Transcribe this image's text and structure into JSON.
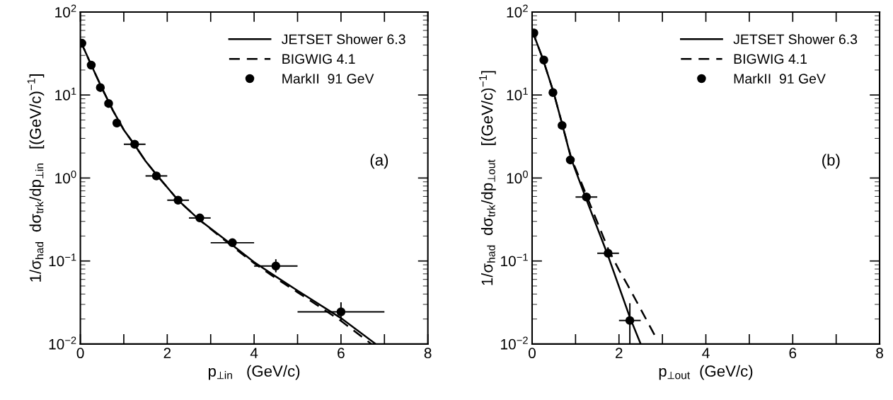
{
  "chart_data": [
    {
      "type": "line",
      "xlabel": "p$_{⊥in}$   (GeV/c)",
      "ylabel": "1/σ$_{had}$  dσ$_{trk}$/dp$_{⊥in}$   [(GeV/c)$^{−1}$]",
      "log": "y",
      "xlim": [
        0,
        8
      ],
      "ylim": [
        0.01,
        100
      ],
      "xticks": [
        0,
        {
          "value": 1,
          "label": null
        },
        2,
        {
          "value": 3,
          "label": null
        },
        4,
        {
          "value": 5,
          "label": null
        },
        6,
        {
          "value": 7,
          "label": null
        },
        8
      ],
      "yticks": [
        {
          "value": 0.01,
          "label": "10$^{−2}$"
        },
        {
          "value": 0.1,
          "label": "10$^{−1}$"
        },
        {
          "value": 1,
          "label": "10$^{0}$"
        },
        {
          "value": 10,
          "label": "10$^{1}$"
        },
        {
          "value": 100,
          "label": "10$^{2}$"
        }
      ],
      "legend": "top right",
      "grid": false,
      "annotations": [
        "(a)"
      ],
      "series": [
        {
          "name": "JETSET Shower 6.3",
          "line_style": "solid",
          "color": "#000000",
          "x": [
            0,
            0.25,
            0.5,
            0.75,
            1.0,
            1.25,
            1.5,
            1.75,
            2.25,
            2.75,
            3.5,
            4.0,
            4.5,
            5.0,
            6.0,
            6.8
          ],
          "values": [
            45,
            23,
            12,
            6.5,
            3.8,
            2.5,
            1.6,
            1.1,
            0.54,
            0.31,
            0.155,
            0.097,
            0.065,
            0.044,
            0.0205,
            0.01
          ]
        },
        {
          "name": "BIGWIG 4.1",
          "line_style": "dashed",
          "color": "#000000",
          "x": [
            0,
            0.25,
            0.5,
            0.75,
            1.0,
            1.25,
            1.5,
            1.75,
            2.25,
            2.75,
            3.5,
            4.0,
            4.5,
            5.0,
            6.0,
            6.7
          ],
          "values": [
            45,
            23,
            12,
            6.5,
            3.8,
            2.5,
            1.6,
            1.1,
            0.54,
            0.31,
            0.15,
            0.094,
            0.062,
            0.042,
            0.019,
            0.01
          ]
        },
        {
          "name": "MarkII  91 GeV",
          "type": "scatter",
          "marker": "circle",
          "color": "#000000",
          "x": [
            0.035,
            0.25,
            0.46,
            0.65,
            0.84,
            1.25,
            1.75,
            2.25,
            2.75,
            3.5,
            4.5,
            6.0
          ],
          "values": [
            42,
            22.9,
            12.3,
            7.9,
            4.6,
            2.55,
            1.06,
            0.54,
            0.33,
            0.166,
            0.087,
            0.0244
          ],
          "xerrors": [
            null,
            null,
            null,
            null,
            null,
            0.25,
            0.25,
            0.25,
            0.25,
            0.5,
            0.5,
            1.0
          ],
          "errors": [
            null,
            null,
            null,
            null,
            null,
            null,
            null,
            null,
            null,
            null,
            [
              0.073,
              0.105
            ],
            [
              0.0189,
              0.0318
            ]
          ]
        }
      ]
    },
    {
      "type": "line",
      "xlabel": "p$_{⊥out}$  (GeV/c)",
      "ylabel": "1/σ$_{had}$  dσ$_{trk}$/dp$_{⊥out}$   [(GeV/c)$^{−1}$]",
      "log": "y",
      "xlim": [
        0,
        8
      ],
      "ylim": [
        0.01,
        100
      ],
      "xticks": [
        0,
        {
          "value": 1,
          "label": null
        },
        2,
        {
          "value": 3,
          "label": null
        },
        4,
        {
          "value": 5,
          "label": null
        },
        6,
        {
          "value": 7,
          "label": null
        },
        8
      ],
      "yticks": [
        {
          "value": 0.01,
          "label": "10$^{−2}$"
        },
        {
          "value": 0.1,
          "label": "10$^{−1}$"
        },
        {
          "value": 1,
          "label": "10$^{0}$"
        },
        {
          "value": 10,
          "label": "10$^{1}$"
        },
        {
          "value": 100,
          "label": "10$^{2}$"
        }
      ],
      "legend": "top right",
      "grid": false,
      "annotations": [
        "(b)"
      ],
      "series": [
        {
          "name": "JETSET Shower 6.3",
          "line_style": "solid",
          "color": "#000000",
          "x": [
            0,
            0.25,
            0.5,
            0.7,
            0.9,
            1.25,
            1.75,
            2.25,
            2.5
          ],
          "values": [
            60,
            27,
            10.5,
            4.3,
            1.7,
            0.55,
            0.115,
            0.021,
            0.01
          ]
        },
        {
          "name": "BIGWIG 4.1",
          "line_style": "dashed",
          "color": "#000000",
          "x": [
            0,
            0.25,
            0.5,
            0.7,
            0.9,
            1.25,
            1.75,
            2.0,
            2.25,
            2.85
          ],
          "values": [
            60,
            27,
            10.5,
            4.3,
            1.75,
            0.62,
            0.14,
            0.078,
            0.046,
            0.012
          ]
        },
        {
          "name": "MarkII  91 GeV",
          "type": "scatter",
          "marker": "circle",
          "color": "#000000",
          "x": [
            0.04,
            0.27,
            0.48,
            0.69,
            0.88,
            1.25,
            1.75,
            2.25
          ],
          "values": [
            56,
            26.4,
            10.7,
            4.3,
            1.65,
            0.59,
            0.124,
            0.0192
          ],
          "xerrors": [
            null,
            null,
            null,
            null,
            null,
            0.25,
            0.25,
            0.25
          ],
          "errors": [
            null,
            null,
            null,
            null,
            null,
            null,
            null,
            [
              0.01,
              0.031
            ]
          ]
        }
      ]
    }
  ]
}
